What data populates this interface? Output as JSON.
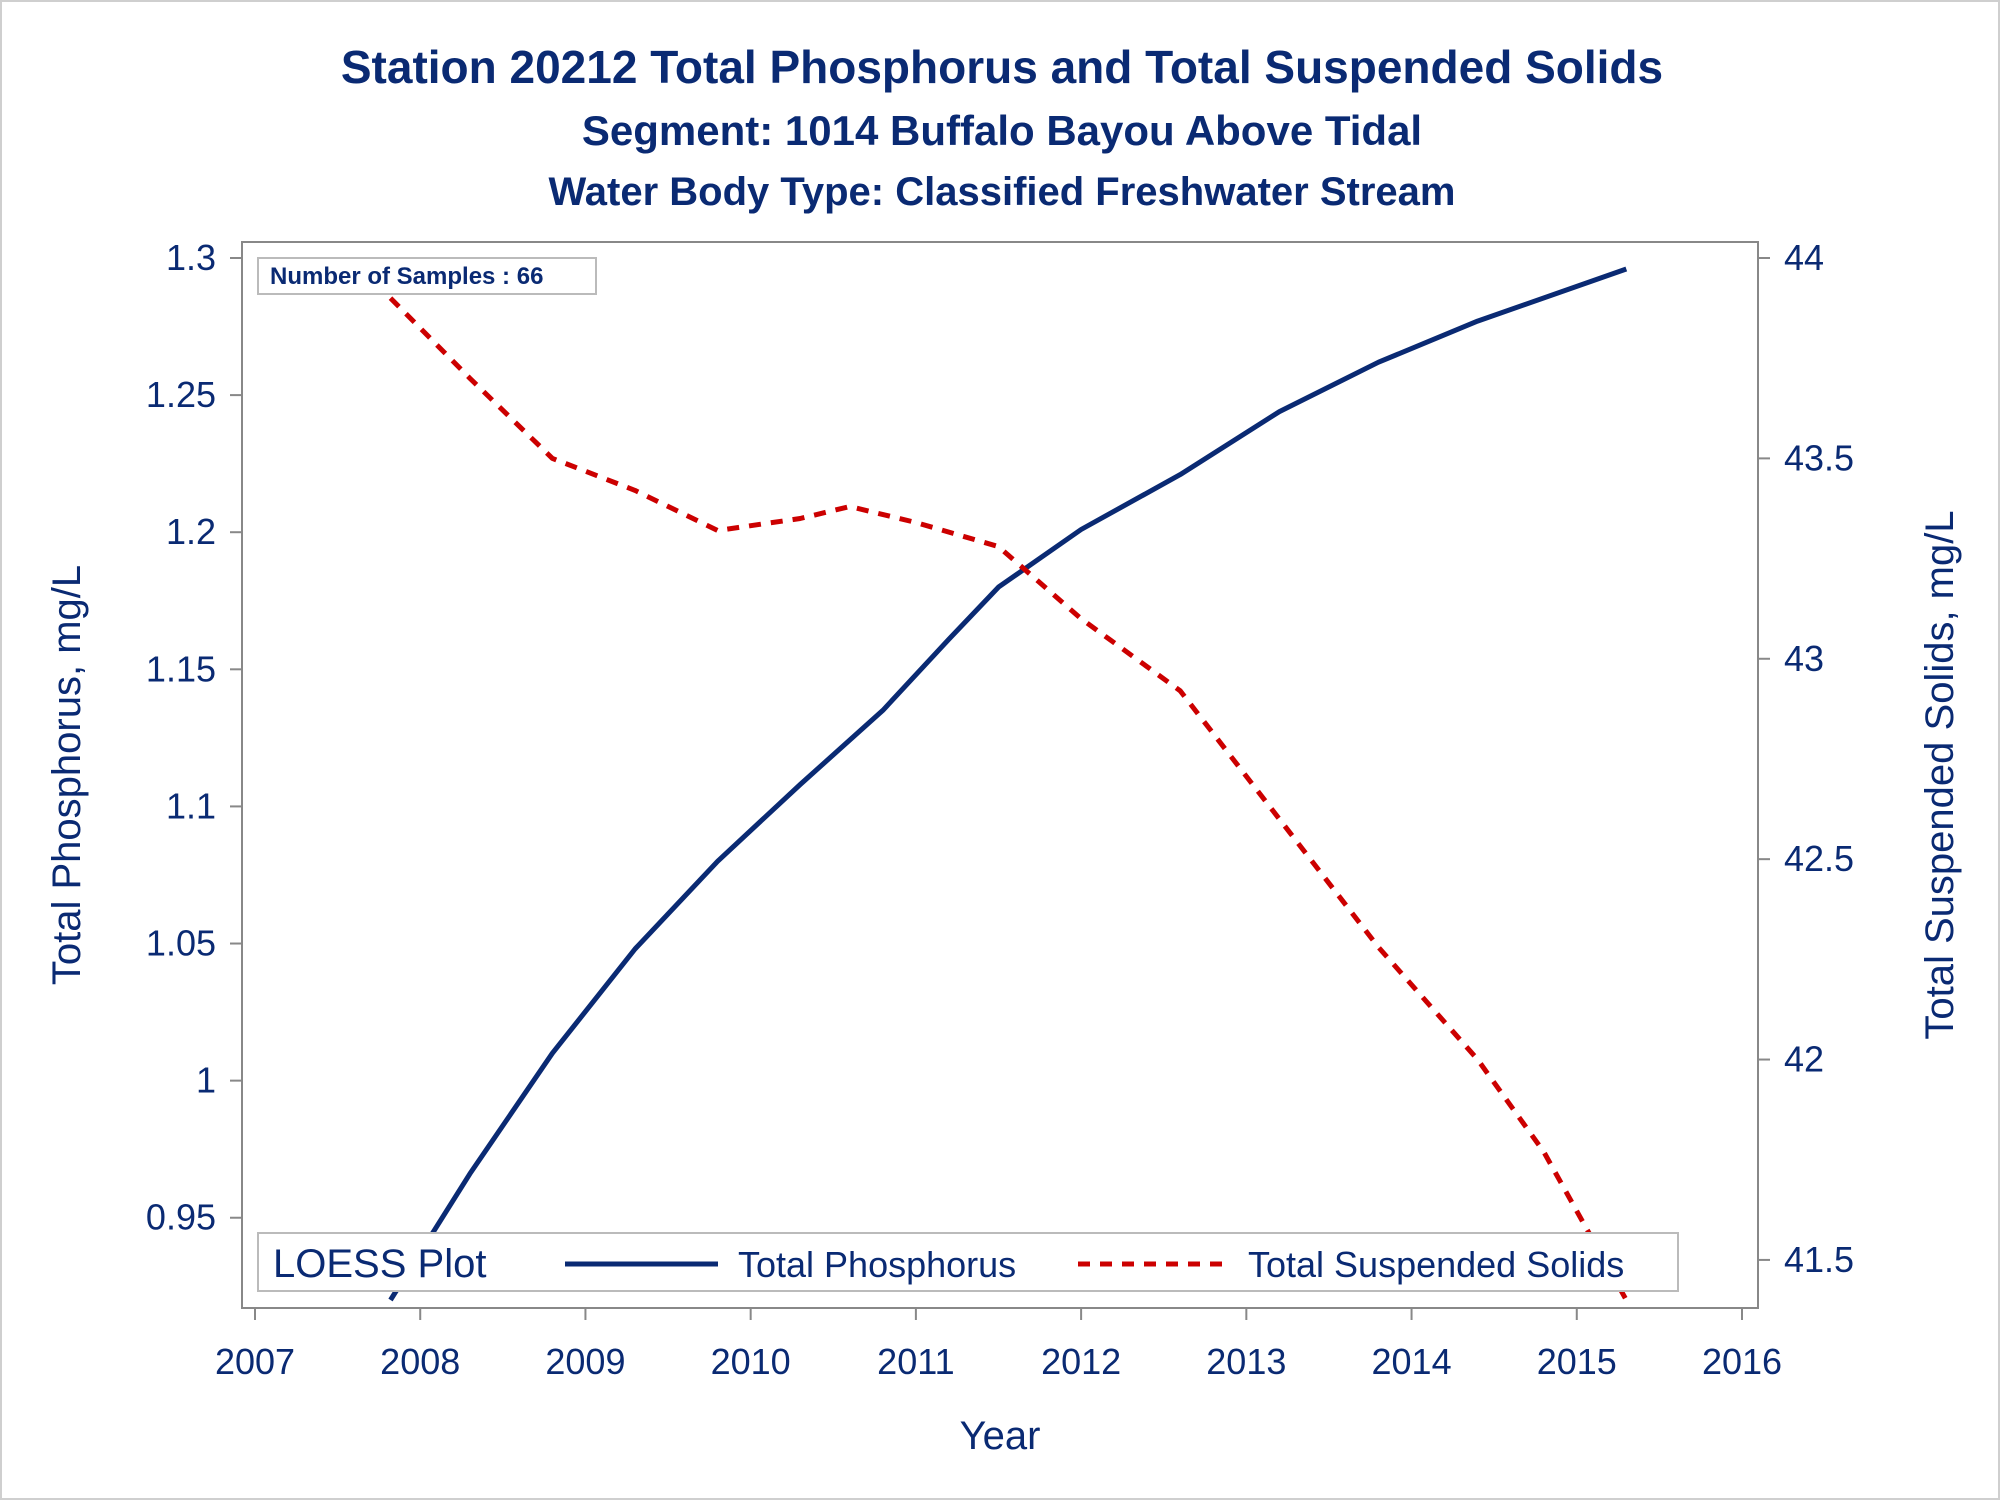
{
  "titles": {
    "line1": "Station 20212  Total Phosphorus and Total Suspended Solids",
    "line2": "Segment: 1014  Buffalo Bayou Above Tidal",
    "line3": "Water Body Type: Classified Freshwater Stream"
  },
  "colors": {
    "text": "#0a2a73",
    "tp": "#0a2a73",
    "tss": "#cc0000",
    "axis": "#888888"
  },
  "chart_data": {
    "type": "line",
    "xlabel": "Year",
    "ylabel_left": "Total Phosphorus, mg/L",
    "ylabel_right": "Total Suspended Solids, mg/L",
    "xlim": [
      2007,
      2016
    ],
    "ylim_left": [
      0.92,
      1.3
    ],
    "ylim_right": [
      41.4,
      44.0
    ],
    "x_ticks": [
      "2007",
      "2008",
      "2009",
      "2010",
      "2011",
      "2012",
      "2013",
      "2014",
      "2015",
      "2016"
    ],
    "y_ticks_left": [
      "0.95",
      "1",
      "1.05",
      "1.1",
      "1.15",
      "1.2",
      "1.25",
      "1.3"
    ],
    "y_ticks_right": [
      "41.5",
      "42",
      "42.5",
      "43",
      "43.5",
      "44"
    ],
    "annotation": "Number of Samples : 66",
    "legend_title": "LOESS Plot",
    "legend_position": "bottom",
    "series": [
      {
        "name": "Total Phosphorus",
        "axis": "left",
        "style": "solid",
        "points": [
          [
            2007.82,
            0.92
          ],
          [
            2008.3,
            0.966
          ],
          [
            2008.8,
            1.01
          ],
          [
            2009.3,
            1.048
          ],
          [
            2009.8,
            1.08
          ],
          [
            2010.3,
            1.108
          ],
          [
            2010.8,
            1.135
          ],
          [
            2011.2,
            1.161
          ],
          [
            2011.5,
            1.18
          ],
          [
            2012.0,
            1.201
          ],
          [
            2012.6,
            1.221
          ],
          [
            2013.2,
            1.244
          ],
          [
            2013.8,
            1.262
          ],
          [
            2014.4,
            1.277
          ],
          [
            2015.3,
            1.296
          ]
        ]
      },
      {
        "name": "Total Suspended Solids",
        "axis": "right",
        "style": "dashed",
        "points": [
          [
            2007.82,
            43.9
          ],
          [
            2008.3,
            43.7
          ],
          [
            2008.8,
            43.5
          ],
          [
            2009.3,
            43.42
          ],
          [
            2009.8,
            43.32
          ],
          [
            2010.3,
            43.35
          ],
          [
            2010.6,
            43.38
          ],
          [
            2011.0,
            43.34
          ],
          [
            2011.5,
            43.28
          ],
          [
            2012.0,
            43.1
          ],
          [
            2012.6,
            42.92
          ],
          [
            2013.2,
            42.6
          ],
          [
            2013.8,
            42.28
          ],
          [
            2014.4,
            42.0
          ],
          [
            2014.8,
            41.77
          ],
          [
            2015.3,
            41.4
          ]
        ]
      }
    ]
  }
}
